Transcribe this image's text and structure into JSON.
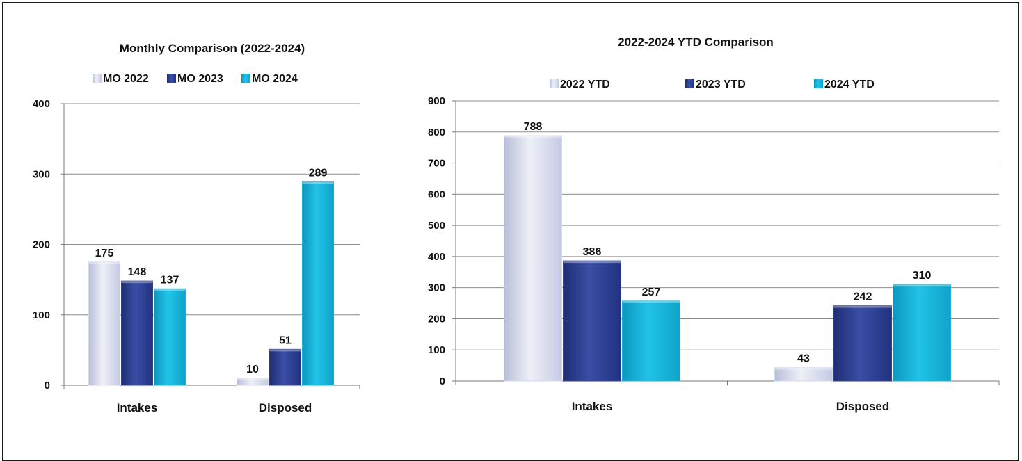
{
  "colors": {
    "s2022": "#d3d8ec",
    "s2023": "#2e3f8f",
    "s2024": "#14b2d6"
  },
  "chart_data": [
    {
      "type": "bar",
      "title": "Monthly Comparison (2022-2024)",
      "categories": [
        "Intakes",
        "Disposed"
      ],
      "series": [
        {
          "name": "MO 2022",
          "values": [
            175,
            10
          ]
        },
        {
          "name": "MO 2023",
          "values": [
            148,
            51
          ]
        },
        {
          "name": "MO 2024",
          "values": [
            137,
            289
          ]
        }
      ],
      "ylim": [
        0,
        400
      ],
      "yticks": [
        0,
        100,
        200,
        300,
        400
      ],
      "grid": true,
      "legend": "top"
    },
    {
      "type": "bar",
      "title": "2022-2024 YTD Comparison",
      "categories": [
        "Intakes",
        "Disposed"
      ],
      "series": [
        {
          "name": "2022 YTD",
          "values": [
            788,
            43
          ]
        },
        {
          "name": "2023 YTD",
          "values": [
            386,
            242
          ]
        },
        {
          "name": "2024 YTD",
          "values": [
            257,
            310
          ]
        }
      ],
      "ylim": [
        0,
        900
      ],
      "yticks": [
        0,
        100,
        200,
        300,
        400,
        500,
        600,
        700,
        800,
        900
      ],
      "grid": true,
      "legend": "top"
    }
  ]
}
